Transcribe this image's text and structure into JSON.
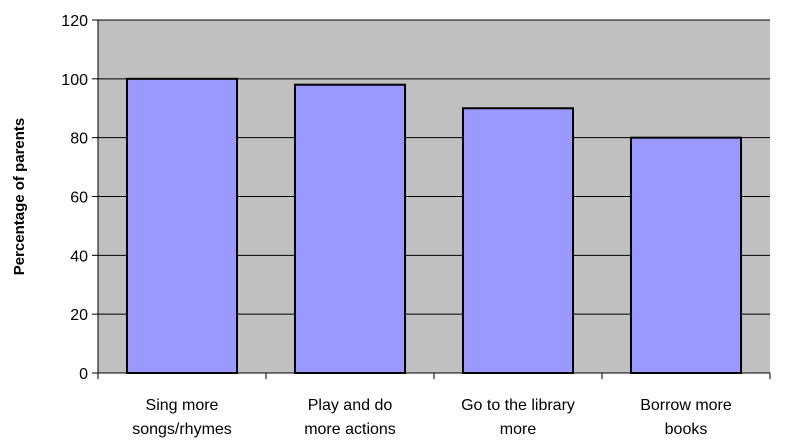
{
  "chart_data": {
    "type": "bar",
    "categories": [
      [
        "Sing more",
        "songs/rhymes"
      ],
      [
        "Play and do",
        "more actions"
      ],
      [
        "Go to the library",
        "more"
      ],
      [
        "Borrow more",
        "books"
      ]
    ],
    "values": [
      100,
      98,
      90,
      80
    ],
    "title": "",
    "xlabel": "",
    "ylabel": "Percentage of parents",
    "ylim": [
      0,
      120
    ],
    "yticks": [
      0,
      20,
      40,
      60,
      80,
      100,
      120
    ],
    "grid": true,
    "legend": "none",
    "colors": {
      "plot_background": "#c0c0c0",
      "bar_fill": "#9999ff",
      "bar_stroke": "#000000",
      "gridline": "#000000"
    }
  }
}
